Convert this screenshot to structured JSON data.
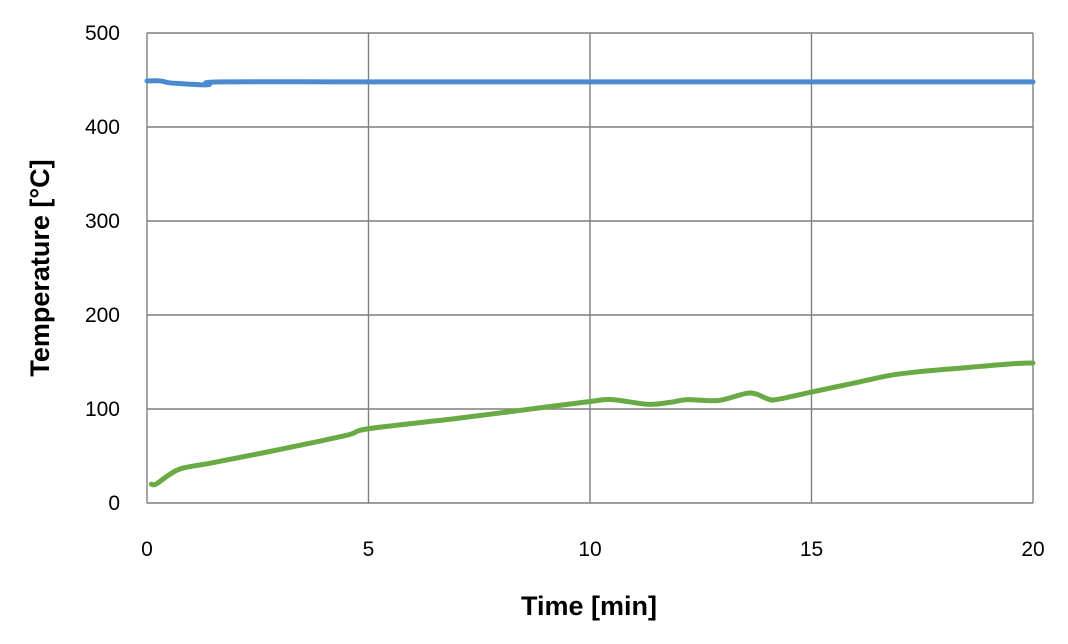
{
  "chart_data": {
    "type": "line",
    "xlabel": "Time [min]",
    "ylabel": "Temperature [°C]",
    "xlim": [
      0,
      20
    ],
    "ylim": [
      0,
      500
    ],
    "x_ticks": [
      "0",
      "5",
      "10",
      "15",
      "20"
    ],
    "y_ticks": [
      "0",
      "100",
      "200",
      "300",
      "400",
      "500"
    ],
    "grid": true,
    "legend": "none",
    "series": [
      {
        "color": "#4a8bd0",
        "points": [
          [
            0,
            449
          ],
          [
            0.3,
            449
          ],
          [
            0.5,
            447
          ],
          [
            0.8,
            446
          ],
          [
            1.2,
            445
          ],
          [
            1.4,
            445
          ],
          [
            1.65,
            448
          ],
          [
            5,
            448
          ],
          [
            10,
            448
          ],
          [
            15,
            448
          ],
          [
            20,
            448
          ]
        ]
      },
      {
        "color": "#6aaa44",
        "points": [
          [
            0.1,
            20
          ],
          [
            0.2,
            20
          ],
          [
            0.5,
            30
          ],
          [
            0.8,
            37
          ],
          [
            1.5,
            43
          ],
          [
            3,
            57
          ],
          [
            4.5,
            72
          ],
          [
            5,
            79
          ],
          [
            7,
            90
          ],
          [
            8.5,
            99
          ],
          [
            10,
            108
          ],
          [
            10.5,
            110
          ],
          [
            11.3,
            105
          ],
          [
            11.8,
            107
          ],
          [
            12.2,
            110
          ],
          [
            12.9,
            109
          ],
          [
            13.6,
            117
          ],
          [
            14,
            111
          ],
          [
            14.2,
            110
          ],
          [
            15,
            118
          ],
          [
            16,
            128
          ],
          [
            16.8,
            136
          ],
          [
            17.5,
            140
          ],
          [
            18.5,
            144
          ],
          [
            19.5,
            148
          ],
          [
            20,
            149
          ]
        ]
      }
    ]
  }
}
